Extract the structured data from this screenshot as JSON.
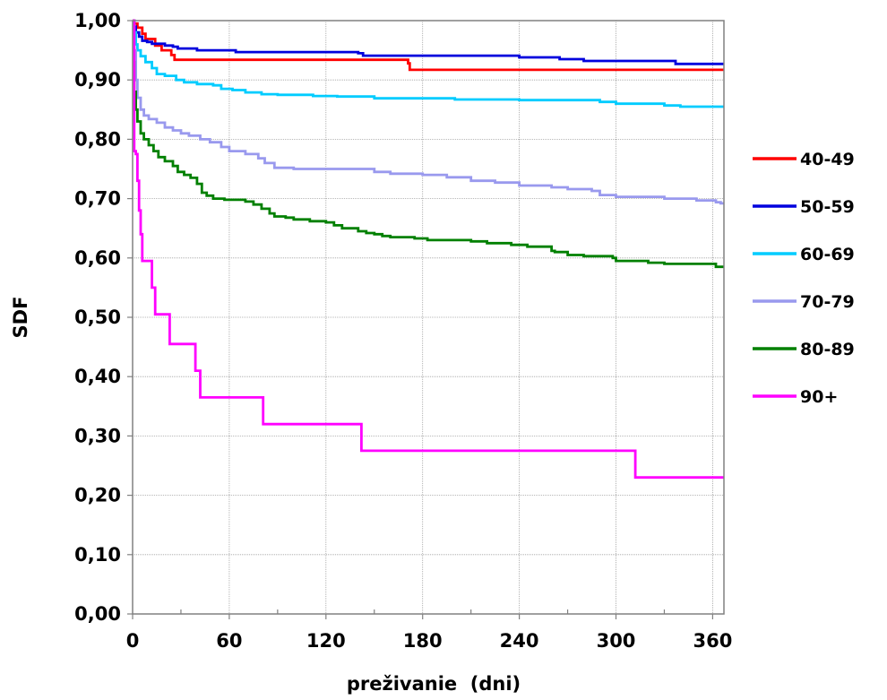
{
  "chart_data": {
    "type": "line",
    "title": "",
    "xlabel": "preživanie  (dni)",
    "ylabel": "SDF",
    "xlim": [
      0,
      365
    ],
    "ylim": [
      0,
      1
    ],
    "x_ticks": [
      0,
      60,
      120,
      180,
      240,
      300,
      360
    ],
    "y_ticks": [
      "0,00",
      "0,10",
      "0,20",
      "0,30",
      "0,40",
      "0,50",
      "0,60",
      "0,70",
      "0,80",
      "0,90",
      "1,00"
    ],
    "grid": true,
    "step": true,
    "legend_position": "right",
    "series": [
      {
        "name": "40-49",
        "color": "#ff0000",
        "points": [
          [
            0,
            1.0
          ],
          [
            1,
            0.995
          ],
          [
            3,
            0.988
          ],
          [
            6,
            0.978
          ],
          [
            8,
            0.969
          ],
          [
            12,
            0.969
          ],
          [
            14,
            0.958
          ],
          [
            18,
            0.95
          ],
          [
            24,
            0.942
          ],
          [
            26,
            0.934
          ],
          [
            150,
            0.934
          ],
          [
            171,
            0.928
          ],
          [
            172,
            0.917
          ],
          [
            365,
            0.917
          ]
        ]
      },
      {
        "name": "50-59",
        "color": "#0000dd",
        "points": [
          [
            0,
            1.0
          ],
          [
            1,
            0.99
          ],
          [
            2,
            0.98
          ],
          [
            4,
            0.973
          ],
          [
            6,
            0.966
          ],
          [
            9,
            0.964
          ],
          [
            12,
            0.961
          ],
          [
            20,
            0.958
          ],
          [
            25,
            0.956
          ],
          [
            28,
            0.953
          ],
          [
            40,
            0.95
          ],
          [
            60,
            0.95
          ],
          [
            64,
            0.947
          ],
          [
            100,
            0.947
          ],
          [
            140,
            0.945
          ],
          [
            143,
            0.941
          ],
          [
            200,
            0.941
          ],
          [
            240,
            0.938
          ],
          [
            265,
            0.935
          ],
          [
            280,
            0.932
          ],
          [
            333,
            0.932
          ],
          [
            337,
            0.927
          ],
          [
            365,
            0.927
          ]
        ]
      },
      {
        "name": "60-69",
        "color": "#00ccff",
        "points": [
          [
            0,
            1.0
          ],
          [
            1,
            0.98
          ],
          [
            2,
            0.96
          ],
          [
            3,
            0.95
          ],
          [
            5,
            0.94
          ],
          [
            8,
            0.93
          ],
          [
            12,
            0.92
          ],
          [
            15,
            0.91
          ],
          [
            20,
            0.907
          ],
          [
            27,
            0.9
          ],
          [
            32,
            0.896
          ],
          [
            40,
            0.893
          ],
          [
            50,
            0.891
          ],
          [
            55,
            0.885
          ],
          [
            62,
            0.883
          ],
          [
            70,
            0.879
          ],
          [
            80,
            0.876
          ],
          [
            90,
            0.875
          ],
          [
            100,
            0.875
          ],
          [
            112,
            0.873
          ],
          [
            127,
            0.872
          ],
          [
            150,
            0.869
          ],
          [
            170,
            0.869
          ],
          [
            200,
            0.867
          ],
          [
            240,
            0.866
          ],
          [
            290,
            0.863
          ],
          [
            300,
            0.86
          ],
          [
            330,
            0.857
          ],
          [
            340,
            0.855
          ],
          [
            365,
            0.855
          ]
        ]
      },
      {
        "name": "70-79",
        "color": "#9999ee",
        "points": [
          [
            0,
            1.0
          ],
          [
            1,
            0.95
          ],
          [
            2,
            0.9
          ],
          [
            3,
            0.87
          ],
          [
            5,
            0.85
          ],
          [
            7,
            0.84
          ],
          [
            10,
            0.834
          ],
          [
            15,
            0.828
          ],
          [
            20,
            0.82
          ],
          [
            25,
            0.815
          ],
          [
            30,
            0.81
          ],
          [
            35,
            0.806
          ],
          [
            42,
            0.8
          ],
          [
            48,
            0.795
          ],
          [
            55,
            0.787
          ],
          [
            60,
            0.78
          ],
          [
            70,
            0.775
          ],
          [
            78,
            0.768
          ],
          [
            82,
            0.76
          ],
          [
            88,
            0.752
          ],
          [
            100,
            0.75
          ],
          [
            140,
            0.75
          ],
          [
            150,
            0.745
          ],
          [
            160,
            0.742
          ],
          [
            180,
            0.74
          ],
          [
            195,
            0.736
          ],
          [
            210,
            0.73
          ],
          [
            225,
            0.727
          ],
          [
            240,
            0.722
          ],
          [
            260,
            0.719
          ],
          [
            270,
            0.716
          ],
          [
            285,
            0.713
          ],
          [
            290,
            0.706
          ],
          [
            300,
            0.703
          ],
          [
            310,
            0.703
          ],
          [
            330,
            0.7
          ],
          [
            350,
            0.697
          ],
          [
            362,
            0.694
          ],
          [
            365,
            0.692
          ]
        ]
      },
      {
        "name": "80-89",
        "color": "#008000",
        "points": [
          [
            0,
            1.0
          ],
          [
            0.5,
            0.93
          ],
          [
            1,
            0.88
          ],
          [
            2,
            0.85
          ],
          [
            3,
            0.83
          ],
          [
            5,
            0.81
          ],
          [
            7,
            0.8
          ],
          [
            10,
            0.79
          ],
          [
            13,
            0.78
          ],
          [
            16,
            0.77
          ],
          [
            20,
            0.763
          ],
          [
            25,
            0.755
          ],
          [
            28,
            0.745
          ],
          [
            32,
            0.74
          ],
          [
            36,
            0.735
          ],
          [
            40,
            0.725
          ],
          [
            43,
            0.71
          ],
          [
            46,
            0.705
          ],
          [
            50,
            0.7
          ],
          [
            57,
            0.698
          ],
          [
            70,
            0.695
          ],
          [
            75,
            0.69
          ],
          [
            80,
            0.683
          ],
          [
            85,
            0.675
          ],
          [
            88,
            0.67
          ],
          [
            95,
            0.668
          ],
          [
            100,
            0.665
          ],
          [
            110,
            0.662
          ],
          [
            120,
            0.66
          ],
          [
            125,
            0.655
          ],
          [
            130,
            0.65
          ],
          [
            140,
            0.645
          ],
          [
            145,
            0.642
          ],
          [
            150,
            0.64
          ],
          [
            155,
            0.637
          ],
          [
            160,
            0.635
          ],
          [
            175,
            0.633
          ],
          [
            183,
            0.63
          ],
          [
            210,
            0.628
          ],
          [
            220,
            0.625
          ],
          [
            235,
            0.622
          ],
          [
            245,
            0.619
          ],
          [
            260,
            0.612
          ],
          [
            262,
            0.61
          ],
          [
            270,
            0.605
          ],
          [
            280,
            0.603
          ],
          [
            298,
            0.6
          ],
          [
            300,
            0.595
          ],
          [
            320,
            0.592
          ],
          [
            330,
            0.59
          ],
          [
            360,
            0.59
          ],
          [
            362,
            0.585
          ],
          [
            365,
            0.585
          ]
        ]
      },
      {
        "name": "90+",
        "color": "#ff00ff",
        "points": [
          [
            0,
            1.0
          ],
          [
            1,
            0.78
          ],
          [
            2,
            0.775
          ],
          [
            3,
            0.73
          ],
          [
            4,
            0.68
          ],
          [
            5,
            0.64
          ],
          [
            6,
            0.595
          ],
          [
            12,
            0.55
          ],
          [
            14,
            0.505
          ],
          [
            23,
            0.455
          ],
          [
            39,
            0.41
          ],
          [
            42,
            0.365
          ],
          [
            81,
            0.32
          ],
          [
            142,
            0.275
          ],
          [
            312,
            0.23
          ],
          [
            365,
            0.23
          ]
        ]
      }
    ]
  }
}
